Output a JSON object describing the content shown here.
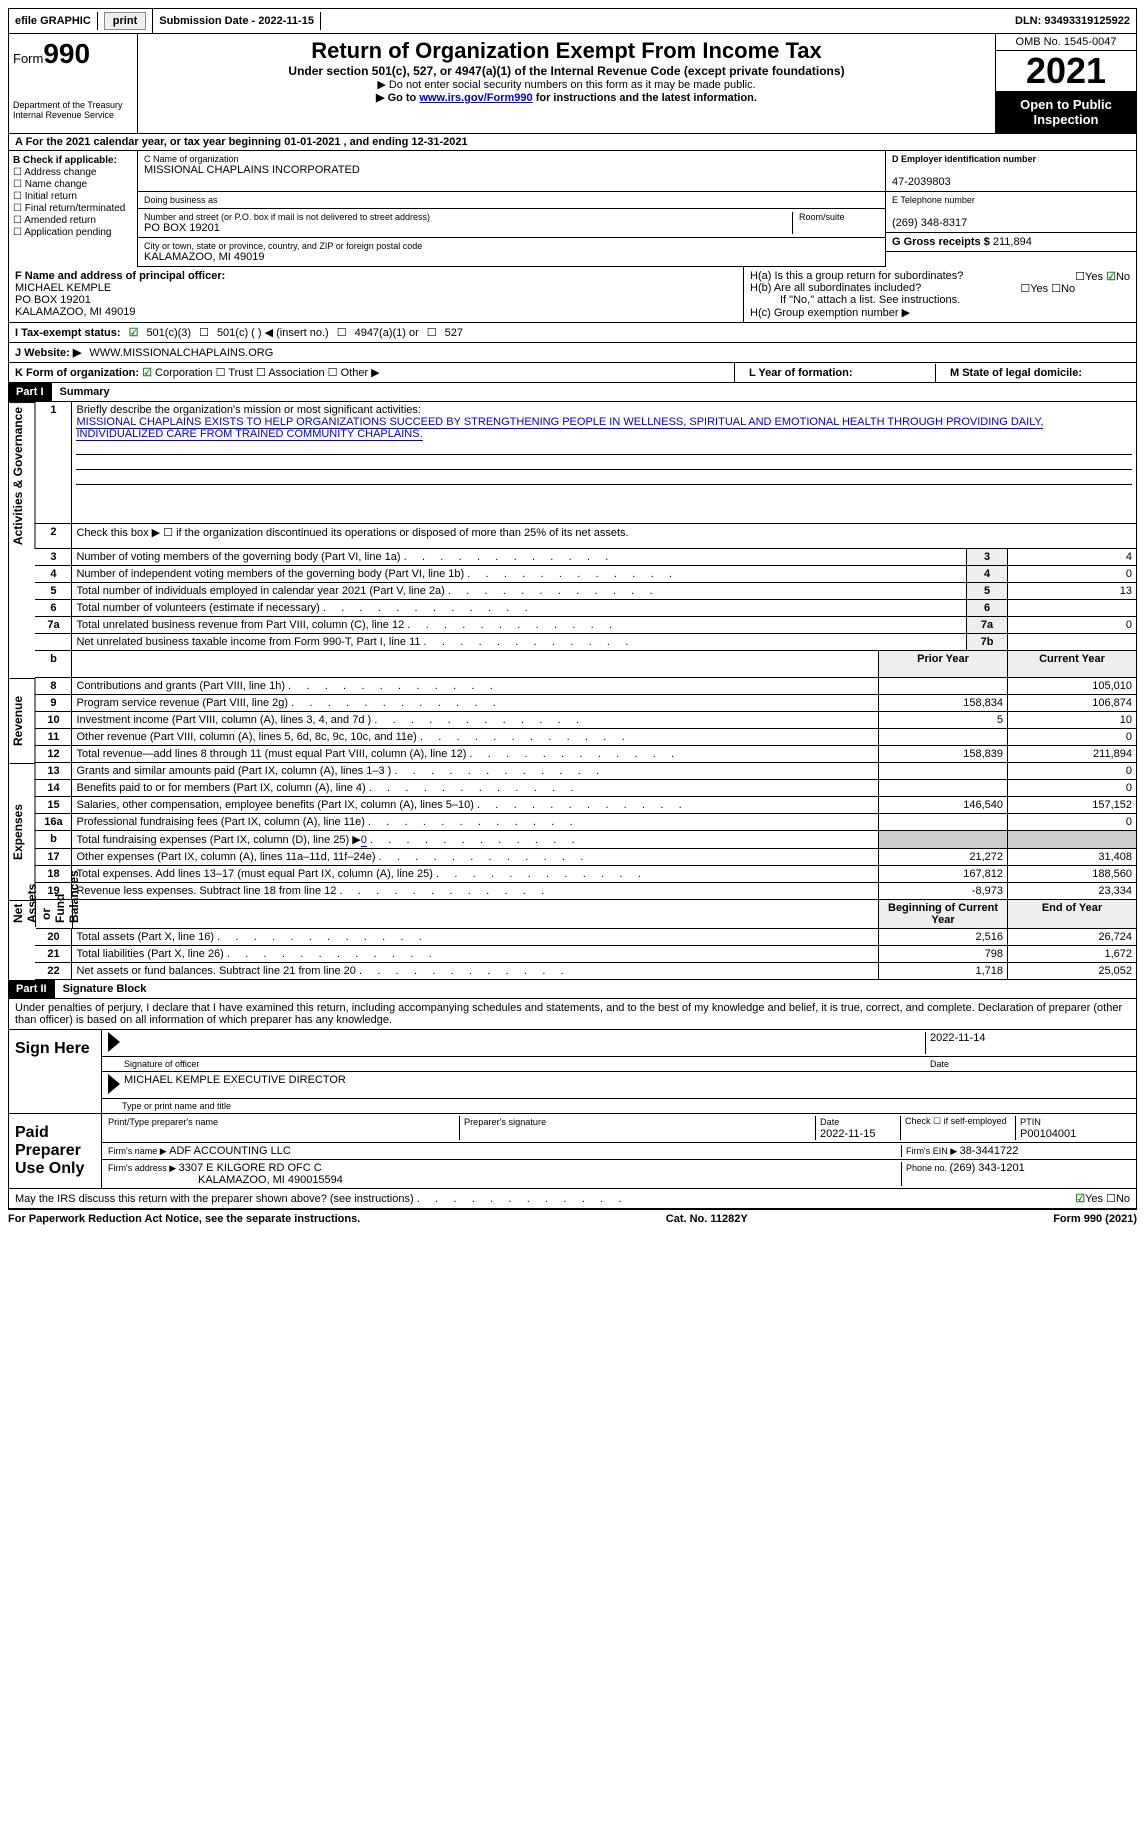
{
  "top": {
    "efile": "efile GRAPHIC",
    "print": "print",
    "sub_date_label": "Submission Date - ",
    "sub_date": "2022-11-15",
    "dln_label": "DLN: ",
    "dln": "93493319125922"
  },
  "header": {
    "form_word": "Form",
    "form_num": "990",
    "title": "Return of Organization Exempt From Income Tax",
    "subtitle": "Under section 501(c), 527, or 4947(a)(1) of the Internal Revenue Code (except private foundations)",
    "note1": "▶ Do not enter social security numbers on this form as it may be made public.",
    "note2_pre": "▶ Go to ",
    "note2_link": "www.irs.gov/Form990",
    "note2_post": " for instructions and the latest information.",
    "dept": "Department of the Treasury",
    "irs": "Internal Revenue Service",
    "omb": "OMB No. 1545-0047",
    "year": "2021",
    "open": "Open to Public Inspection"
  },
  "rowA": {
    "text_pre": "A For the 2021 calendar year, or tax year beginning ",
    "begin": "01-01-2021",
    "mid": "   , and ending ",
    "end": "12-31-2021"
  },
  "colB": {
    "head": "B Check if applicable:",
    "opts": [
      "Address change",
      "Name change",
      "Initial return",
      "Final return/terminated",
      "Amended return",
      "Application pending"
    ]
  },
  "colC": {
    "name_lbl": "C Name of organization",
    "name": "MISSIONAL CHAPLAINS INCORPORATED",
    "dba": "Doing business as",
    "street_lbl": "Number and street (or P.O. box if mail is not delivered to street address)",
    "room_lbl": "Room/suite",
    "street": "PO BOX 19201",
    "city_lbl": "City or town, state or province, country, and ZIP or foreign postal code",
    "city": "KALAMAZOO, MI  49019"
  },
  "colD": {
    "d_lbl": "D Employer identification number",
    "ein": "47-2039803",
    "e_lbl": "E Telephone number",
    "phone": "(269) 348-8317",
    "g_lbl": "G Gross receipts $ ",
    "gross": "211,894"
  },
  "rowF": {
    "f_lbl": "F  Name and address of principal officer:",
    "name": "MICHAEL KEMPLE",
    "addr1": "PO BOX 19201",
    "addr2": "KALAMAZOO, MI  49019",
    "ha": "H(a)  Is this a group return for subordinates?",
    "hb": "H(b)  Are all subordinates included?",
    "hb_note": "If \"No,\" attach a list. See instructions.",
    "hc": "H(c)  Group exemption number ▶",
    "yes": "Yes",
    "no": "No"
  },
  "rowI": {
    "lbl": "I    Tax-exempt status:",
    "o1": "501(c)(3)",
    "o2": "501(c) (  ) ◀ (insert no.)",
    "o3": "4947(a)(1) or",
    "o4": "527"
  },
  "rowJ": {
    "lbl": "J   Website: ▶  ",
    "val": "WWW.MISSIONALCHAPLAINS.ORG"
  },
  "rowK": {
    "lbl": "K Form of organization:",
    "o1": "Corporation",
    "o2": "Trust",
    "o3": "Association",
    "o4": "Other ▶",
    "l": "L Year of formation:",
    "m": "M State of legal domicile:"
  },
  "part1": {
    "hdr": "Part I",
    "title": "Summary",
    "l1": "Briefly describe the organization's mission or most significant activities:",
    "mission": "MISSIONAL CHAPLAINS EXISTS TO HELP ORGANIZATIONS SUCCEED BY STRENGTHENING PEOPLE IN WELLNESS, SPIRITUAL AND EMOTIONAL HEALTH THROUGH PROVIDING DAILY, INDIVIDUALIZED CARE FROM TRAINED COMMUNITY CHAPLAINS.",
    "l2": "Check this box ▶ ☐ if the organization discontinued its operations or disposed of more than 25% of its net assets.",
    "side1": "Activities & Governance",
    "side2": "Revenue",
    "side3": "Expenses",
    "side4": "Net Assets or Fund Balances",
    "rows_gov": [
      {
        "n": "3",
        "t": "Number of voting members of the governing body (Part VI, line 1a)",
        "box": "3",
        "v": "4"
      },
      {
        "n": "4",
        "t": "Number of independent voting members of the governing body (Part VI, line 1b)",
        "box": "4",
        "v": "0"
      },
      {
        "n": "5",
        "t": "Total number of individuals employed in calendar year 2021 (Part V, line 2a)",
        "box": "5",
        "v": "13"
      },
      {
        "n": "6",
        "t": "Total number of volunteers (estimate if necessary)",
        "box": "6",
        "v": ""
      },
      {
        "n": "7a",
        "t": "Total unrelated business revenue from Part VIII, column (C), line 12",
        "box": "7a",
        "v": "0"
      },
      {
        "n": "",
        "t": "Net unrelated business taxable income from Form 990-T, Part I, line 11",
        "box": "7b",
        "v": ""
      }
    ],
    "col_prior": "Prior Year",
    "col_curr": "Current Year",
    "rows_rev": [
      {
        "n": "8",
        "t": "Contributions and grants (Part VIII, line 1h)",
        "p": "",
        "c": "105,010"
      },
      {
        "n": "9",
        "t": "Program service revenue (Part VIII, line 2g)",
        "p": "158,834",
        "c": "106,874"
      },
      {
        "n": "10",
        "t": "Investment income (Part VIII, column (A), lines 3, 4, and 7d )",
        "p": "5",
        "c": "10"
      },
      {
        "n": "11",
        "t": "Other revenue (Part VIII, column (A), lines 5, 6d, 8c, 9c, 10c, and 11e)",
        "p": "",
        "c": "0"
      },
      {
        "n": "12",
        "t": "Total revenue—add lines 8 through 11 (must equal Part VIII, column (A), line 12)",
        "p": "158,839",
        "c": "211,894"
      }
    ],
    "rows_exp": [
      {
        "n": "13",
        "t": "Grants and similar amounts paid (Part IX, column (A), lines 1–3 )",
        "p": "",
        "c": "0"
      },
      {
        "n": "14",
        "t": "Benefits paid to or for members (Part IX, column (A), line 4)",
        "p": "",
        "c": "0"
      },
      {
        "n": "15",
        "t": "Salaries, other compensation, employee benefits (Part IX, column (A), lines 5–10)",
        "p": "146,540",
        "c": "157,152"
      },
      {
        "n": "16a",
        "t": "Professional fundraising fees (Part IX, column (A), line 11e)",
        "p": "",
        "c": "0"
      },
      {
        "n": "b",
        "t": "Total fundraising expenses (Part IX, column (D), line 25) ▶0",
        "p": "grey",
        "c": "grey"
      },
      {
        "n": "17",
        "t": "Other expenses (Part IX, column (A), lines 11a–11d, 11f–24e)",
        "p": "21,272",
        "c": "31,408"
      },
      {
        "n": "18",
        "t": "Total expenses. Add lines 13–17 (must equal Part IX, column (A), line 25)",
        "p": "167,812",
        "c": "188,560"
      },
      {
        "n": "19",
        "t": "Revenue less expenses. Subtract line 18 from line 12",
        "p": "-8,973",
        "c": "23,334"
      }
    ],
    "col_beg": "Beginning of Current Year",
    "col_end": "End of Year",
    "rows_net": [
      {
        "n": "20",
        "t": "Total assets (Part X, line 16)",
        "p": "2,516",
        "c": "26,724"
      },
      {
        "n": "21",
        "t": "Total liabilities (Part X, line 26)",
        "p": "798",
        "c": "1,672"
      },
      {
        "n": "22",
        "t": "Net assets or fund balances. Subtract line 21 from line 20",
        "p": "1,718",
        "c": "25,052"
      }
    ]
  },
  "part2": {
    "hdr": "Part II",
    "title": "Signature Block",
    "decl": "Under penalties of perjury, I declare that I have examined this return, including accompanying schedules and statements, and to the best of my knowledge and belief, it is true, correct, and complete. Declaration of preparer (other than officer) is based on all information of which preparer has any knowledge.",
    "sign_here": "Sign Here",
    "sig_officer": "Signature of officer",
    "date": "Date",
    "sig_date": "2022-11-14",
    "officer_name": "MICHAEL KEMPLE  EXECUTIVE DIRECTOR",
    "type_name": "Type or print name and title",
    "paid": "Paid Preparer Use Only",
    "prep_name_lbl": "Print/Type preparer's name",
    "prep_sig_lbl": "Preparer's signature",
    "prep_date_lbl": "Date",
    "prep_date": "2022-11-15",
    "self_emp": "Check ☐ if self-employed",
    "ptin_lbl": "PTIN",
    "ptin": "P00104001",
    "firm_name_lbl": "Firm's name     ▶ ",
    "firm_name": "ADF ACCOUNTING LLC",
    "firm_ein_lbl": "Firm's EIN ▶ ",
    "firm_ein": "38-3441722",
    "firm_addr_lbl": "Firm's address ▶ ",
    "firm_addr1": "3307 E KILGORE RD OFC C",
    "firm_addr2": "KALAMAZOO, MI  490015594",
    "firm_phone_lbl": "Phone no. ",
    "firm_phone": "(269) 343-1201",
    "may_irs": "May the IRS discuss this return with the preparer shown above? (see instructions)"
  },
  "footer": {
    "left": "For Paperwork Reduction Act Notice, see the separate instructions.",
    "mid": "Cat. No. 11282Y",
    "right": "Form 990 (2021)"
  },
  "row_b_head": "b"
}
